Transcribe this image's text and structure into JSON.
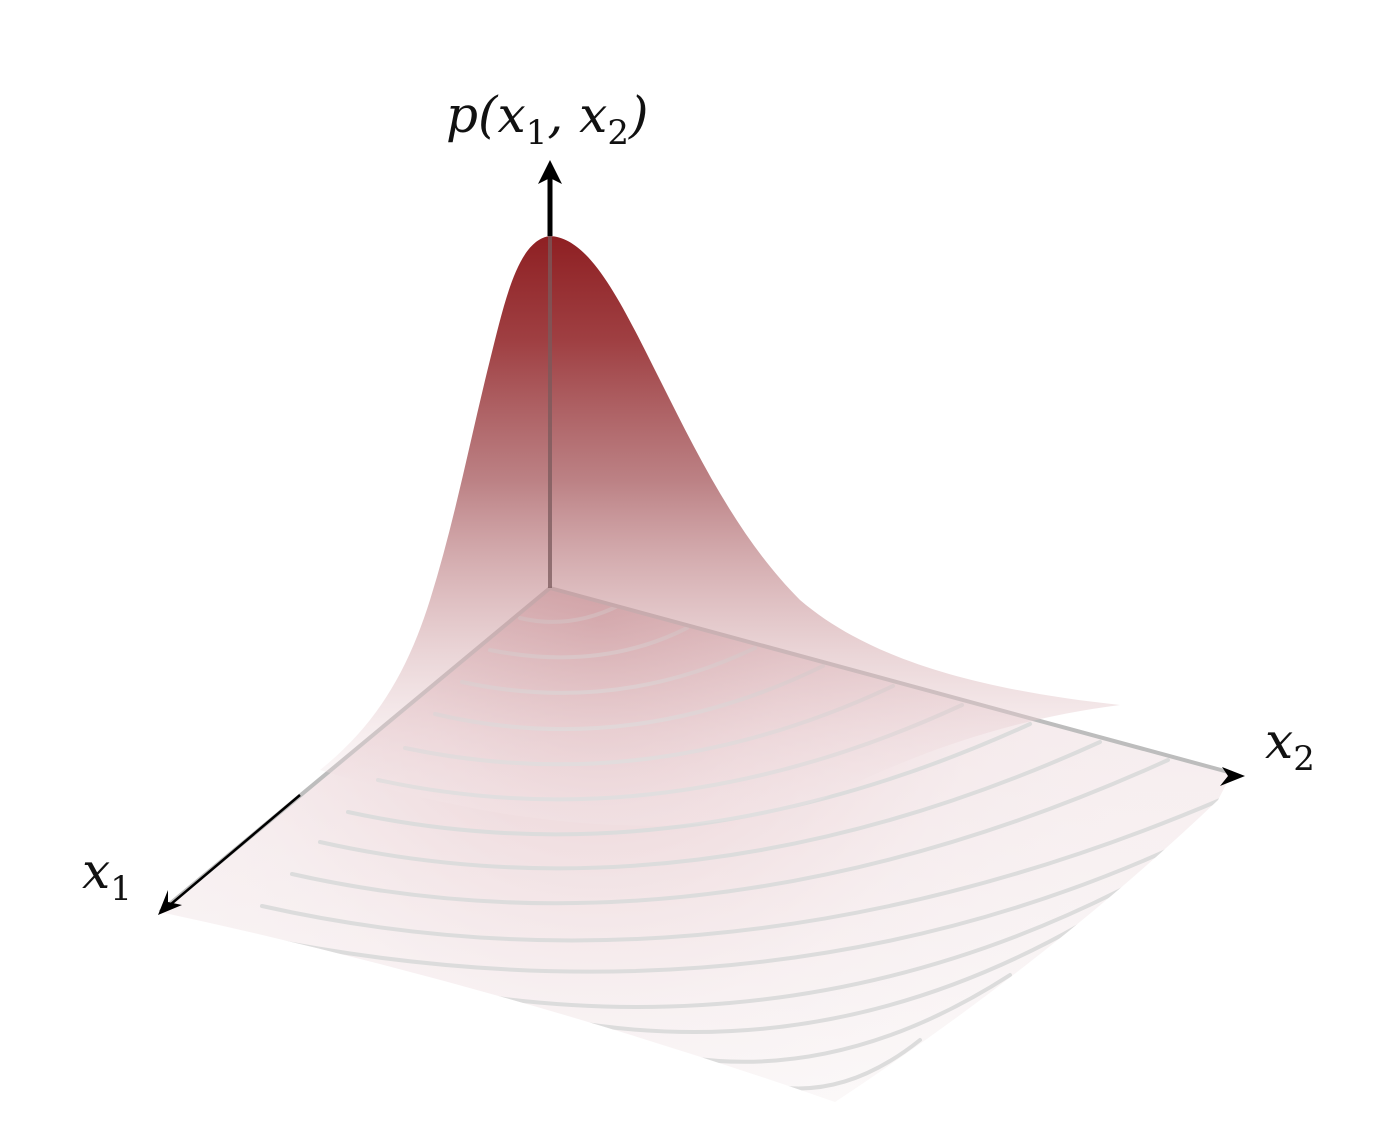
{
  "labels": {
    "z_main": "p(x",
    "z_sub1": "1",
    "z_mid": ", x",
    "z_sub2": "2",
    "z_end": ")",
    "x1_main": "x",
    "x1_sub": "1",
    "x2_main": "x",
    "x2_sub": "2"
  },
  "colors": {
    "surface_peak": "#8b1a1a",
    "surface_mid": "#b5666a",
    "surface_low": "#f6eaec",
    "grid": "#c8c8c8",
    "axis": "#000000",
    "contour": "#d9d9d9"
  }
}
